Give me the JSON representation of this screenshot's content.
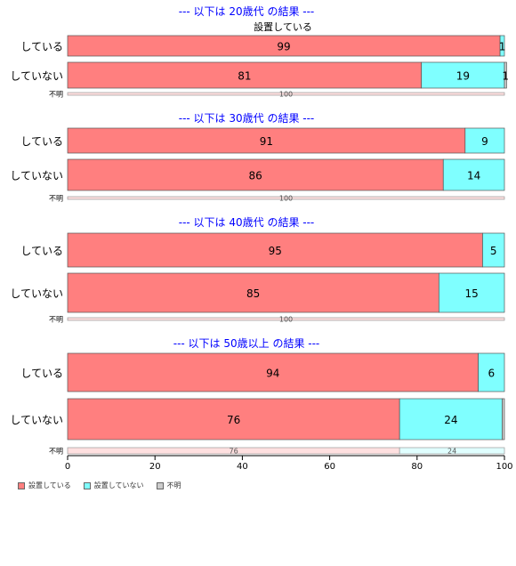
{
  "chart_data": {
    "type": "bar",
    "orientation": "horizontal",
    "stacked": true,
    "xlim": [
      0,
      100
    ],
    "xticks": [
      "0",
      "20",
      "40",
      "60",
      "80",
      "100"
    ],
    "series_names": [
      "設置している",
      "設置していない",
      "不明"
    ],
    "colors": {
      "installed": "#ff7f7f",
      "not_installed": "#7fffff",
      "unknown": "#cccccc"
    },
    "column_header": "設置している",
    "panels": [
      {
        "title": "--- 以下は 20歳代 の結果 ---",
        "rows": [
          {
            "label": "している",
            "values": [
              99,
              1,
              0
            ],
            "value_labels": [
              "99",
              "1",
              ""
            ],
            "size": "large"
          },
          {
            "label": "していない",
            "values": [
              81,
              19,
              0.5
            ],
            "value_labels": [
              "81",
              "19",
              "1"
            ],
            "size": "large"
          },
          {
            "label": "不明",
            "values": [
              100,
              0,
              0
            ],
            "value_labels": [
              "100",
              "",
              ""
            ],
            "size": "small"
          }
        ]
      },
      {
        "title": "--- 以下は 30歳代 の結果 ---",
        "rows": [
          {
            "label": "している",
            "values": [
              91,
              9,
              0
            ],
            "value_labels": [
              "91",
              "9",
              ""
            ],
            "size": "large"
          },
          {
            "label": "していない",
            "values": [
              86,
              14,
              0
            ],
            "value_labels": [
              "86",
              "14",
              ""
            ],
            "size": "large"
          },
          {
            "label": "不明",
            "values": [
              100,
              0,
              0
            ],
            "value_labels": [
              "100",
              "",
              ""
            ],
            "size": "small"
          }
        ]
      },
      {
        "title": "--- 以下は 40歳代 の結果 ---",
        "rows": [
          {
            "label": "している",
            "values": [
              95,
              5,
              0
            ],
            "value_labels": [
              "95",
              "5",
              ""
            ],
            "size": "large"
          },
          {
            "label": "していない",
            "values": [
              85,
              15,
              0
            ],
            "value_labels": [
              "85",
              "15",
              ""
            ],
            "size": "large"
          },
          {
            "label": "不明",
            "values": [
              100,
              0,
              0
            ],
            "value_labels": [
              "100",
              "",
              ""
            ],
            "size": "small"
          }
        ]
      },
      {
        "title": "--- 以下は 50歳以上 の結果 ---",
        "rows": [
          {
            "label": "している",
            "values": [
              94,
              6,
              0
            ],
            "value_labels": [
              "94",
              "6",
              ""
            ],
            "size": "large"
          },
          {
            "label": "していない",
            "values": [
              76,
              23.5,
              0.5
            ],
            "value_labels": [
              "76",
              "24",
              ""
            ],
            "size": "large"
          },
          {
            "label": "不明",
            "values": [
              76,
              24,
              0
            ],
            "value_labels": [
              "76",
              "24",
              ""
            ],
            "size": "small"
          }
        ]
      }
    ]
  },
  "legend": {
    "items": [
      {
        "label": "設置している",
        "color": "#ff7f7f"
      },
      {
        "label": "設置していない",
        "color": "#7fffff"
      },
      {
        "label": "不明",
        "color": "#cccccc"
      }
    ]
  }
}
